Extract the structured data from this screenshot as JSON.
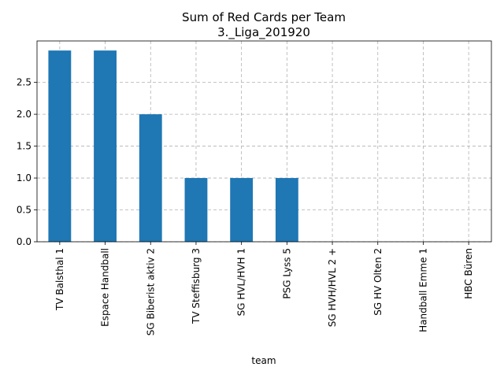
{
  "chart_data": {
    "type": "bar",
    "title": "Sum of Red Cards per Team",
    "subtitle": "3._Liga_201920",
    "xlabel": "team",
    "ylabel": "",
    "categories": [
      "TV Balsthal 1",
      "Espace Handball",
      "SG Biberist aktiv 2",
      "TV Steffisburg 3",
      "SG HVL/HVH 1",
      "PSG Lyss 5",
      "SG HVH/HVL 2 +",
      "SG HV Olten 2",
      "Handball Emme 1",
      "HBC Büren"
    ],
    "values": [
      3,
      3,
      2,
      1,
      1,
      1,
      0,
      0,
      0,
      0
    ],
    "ylim": [
      0,
      3.15
    ],
    "yticks": [
      0.0,
      0.5,
      1.0,
      1.5,
      2.0,
      2.5
    ],
    "ytick_labels": [
      "0.0",
      "0.5",
      "1.0",
      "1.5",
      "2.0",
      "2.5"
    ],
    "grid": true,
    "bar_color": "#1f77b4"
  }
}
